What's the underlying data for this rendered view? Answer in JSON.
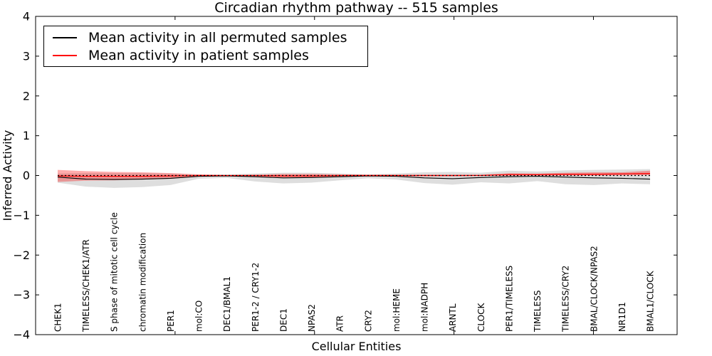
{
  "figure": {
    "title": "Circadian rhythm pathway -- 515 samples",
    "xlabel": "Cellular Entities",
    "ylabel": "Inferred Activity"
  },
  "legend": {
    "position": "upper left",
    "items": [
      {
        "label": "Mean activity in all permuted samples",
        "color": "#000000"
      },
      {
        "label": "Mean activity in patient samples",
        "color": "#ff0000"
      }
    ]
  },
  "chart_data": {
    "type": "line",
    "title": "Circadian rhythm pathway -- 515 samples",
    "xlabel": "Cellular Entities",
    "ylabel": "Inferred Activity",
    "ylim": [
      -4,
      4
    ],
    "ytick_labels": [
      "4",
      "3",
      "2",
      "1",
      "0",
      "−1",
      "−2",
      "−3",
      "−4"
    ],
    "ytick_values": [
      4,
      3,
      2,
      1,
      0,
      -1,
      -2,
      -3,
      -4
    ],
    "xlim": [
      0,
      23
    ],
    "xticks_unlabeled": [
      5,
      10,
      15,
      20
    ],
    "grid": false,
    "legend_position": "upper left",
    "categories": [
      "CHEK1",
      "TIMELESS/CHEK1/ATR",
      "S phase of mitotic cell cycle",
      "chromatin modification",
      "PER1",
      "mol:CO",
      "DEC1/BMAL1",
      "PER1-2 / CRY1-2",
      "DEC1",
      "NPAS2",
      "ATR",
      "CRY2",
      "mol:HEME",
      "mol:NADPH",
      "ARNTL",
      "CLOCK",
      "PER1/TIMELESS",
      "TIMELESS",
      "TIMELESS/CRY2",
      "BMAL/CLOCK/NPAS2",
      "NR1D1",
      "BMAL1/CLOCK"
    ],
    "series": [
      {
        "name": "Mean activity in all permuted samples",
        "style": "solid",
        "color": "#000000",
        "values": [
          -0.04,
          -0.09,
          -0.1,
          -0.09,
          -0.07,
          -0.02,
          -0.01,
          -0.03,
          -0.06,
          -0.05,
          -0.03,
          -0.01,
          -0.02,
          -0.06,
          -0.08,
          -0.05,
          -0.03,
          -0.02,
          -0.04,
          -0.06,
          -0.07,
          -0.09
        ]
      },
      {
        "name": "Mean activity in patient samples",
        "style": "solid",
        "color": "#ff0000",
        "values": [
          -0.01,
          -0.02,
          -0.02,
          -0.02,
          -0.01,
          0.0,
          0.0,
          0.0,
          -0.01,
          -0.01,
          0.0,
          0.0,
          0.0,
          0.0,
          0.0,
          0.0,
          0.02,
          0.02,
          0.03,
          0.03,
          0.04,
          0.05
        ]
      }
    ],
    "reference_line": {
      "name": "zero reference",
      "value": 0,
      "style": "dashed",
      "color": "#000000"
    },
    "bands": [
      {
        "name": "permuted samples range",
        "color": "#888888",
        "opacity": 0.28,
        "upper": [
          0.05,
          0.06,
          0.06,
          0.06,
          0.05,
          0.02,
          0.03,
          0.05,
          0.07,
          0.07,
          0.05,
          0.03,
          0.05,
          0.08,
          0.09,
          0.07,
          0.12,
          0.1,
          0.13,
          0.14,
          0.15,
          0.16
        ],
        "lower": [
          -0.18,
          -0.28,
          -0.31,
          -0.29,
          -0.24,
          -0.08,
          -0.06,
          -0.15,
          -0.2,
          -0.18,
          -0.12,
          -0.07,
          -0.1,
          -0.19,
          -0.23,
          -0.17,
          -0.2,
          -0.14,
          -0.22,
          -0.24,
          -0.2,
          -0.22
        ]
      },
      {
        "name": "patient samples range",
        "color": "#ff0000",
        "opacity": 0.32,
        "upper": [
          0.14,
          0.11,
          0.09,
          0.08,
          0.06,
          0.03,
          0.01,
          0.02,
          0.04,
          0.04,
          0.03,
          0.02,
          0.02,
          0.02,
          0.02,
          0.02,
          0.06,
          0.05,
          0.07,
          0.08,
          0.08,
          0.12
        ],
        "lower": [
          -0.16,
          -0.13,
          -0.12,
          -0.1,
          -0.08,
          -0.03,
          -0.01,
          -0.02,
          -0.05,
          -0.05,
          -0.03,
          -0.02,
          -0.02,
          -0.02,
          -0.02,
          -0.01,
          0.0,
          0.0,
          0.0,
          0.0,
          0.0,
          0.01
        ]
      }
    ]
  }
}
